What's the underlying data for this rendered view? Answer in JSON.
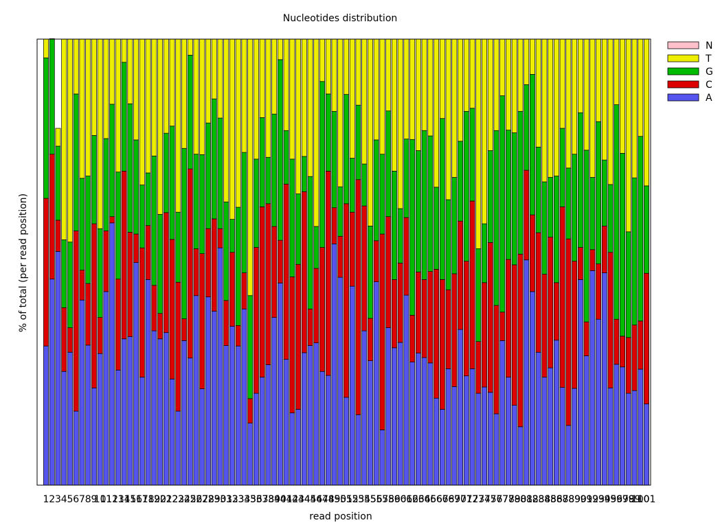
{
  "chart_data": {
    "type": "bar",
    "stacked": true,
    "title": "Nucleotides distribution",
    "xlabel": "read position",
    "ylabel": "% of total (per read position)",
    "ylim": [
      0,
      100
    ],
    "grid": false,
    "legend_position": "top-right, outside plot",
    "categories": [
      1,
      2,
      3,
      4,
      5,
      6,
      7,
      8,
      9,
      10,
      11,
      12,
      13,
      14,
      15,
      16,
      17,
      18,
      19,
      20,
      21,
      22,
      23,
      24,
      25,
      26,
      27,
      28,
      29,
      30,
      31,
      32,
      33,
      34,
      35,
      36,
      37,
      38,
      39,
      40,
      41,
      42,
      43,
      44,
      45,
      46,
      47,
      48,
      49,
      50,
      51,
      52,
      53,
      54,
      55,
      56,
      57,
      58,
      59,
      60,
      61,
      62,
      63,
      64,
      65,
      66,
      67,
      68,
      69,
      70,
      71,
      72,
      73,
      74,
      75,
      76,
      77,
      78,
      79,
      80,
      81,
      82,
      83,
      84,
      85,
      86,
      87,
      88,
      89,
      90,
      91,
      92,
      93,
      94,
      95,
      96,
      97,
      98,
      99,
      100,
      101
    ],
    "series": [
      {
        "name": "A",
        "color": "#5555ee",
        "values": [
          31.2,
          46.2,
          52.4,
          25.5,
          29.8,
          16.6,
          41.5,
          31.4,
          21.8,
          29.5,
          43.4,
          58.8,
          25.8,
          32.8,
          33.3,
          49.9,
          24.2,
          46.1,
          34.6,
          32.8,
          34.2,
          23.8,
          16.6,
          32.4,
          28.5,
          42.5,
          21.6,
          42.2,
          39.0,
          53.2,
          31.3,
          35.6,
          31.2,
          39.5,
          13.9,
          20.6,
          24.2,
          27.0,
          37.6,
          45.3,
          28.2,
          16.2,
          17.0,
          29.7,
          31.3,
          31.9,
          25.5,
          24.6,
          54.1,
          46.6,
          19.7,
          44.6,
          15.8,
          34.6,
          27.9,
          45.6,
          12.4,
          35.3,
          30.8,
          32.0,
          42.6,
          27.6,
          29.6,
          28.6,
          27.4,
          19.5,
          17.0,
          26.1,
          22.1,
          34.9,
          24.5,
          26.1,
          20.6,
          22.0,
          20.8,
          16.0,
          32.4,
          24.2,
          17.9,
          13.1,
          50.5,
          43.4,
          29.8,
          24.2,
          26.3,
          32.5,
          21.9,
          13.4,
          21.7,
          46.1,
          29.0,
          48.1,
          37.2,
          47.6,
          21.8,
          27.1,
          26.5,
          20.6,
          21.2,
          26.0,
          18.2
        ]
      },
      {
        "name": "C",
        "color": "#dd0000",
        "values": [
          33.1,
          28.0,
          7.0,
          14.3,
          5.5,
          40.4,
          6.7,
          13.8,
          36.8,
          8.1,
          13.6,
          1.4,
          20.4,
          37.6,
          23.4,
          6.4,
          29.0,
          12.1,
          10.2,
          5.7,
          26.9,
          31.3,
          28.9,
          4.9,
          42.4,
          10.5,
          30.3,
          15.3,
          20.7,
          4.3,
          10.1,
          16.6,
          4.6,
          8.1,
          5.5,
          32.7,
          38.2,
          36.1,
          20.4,
          9.6,
          39.3,
          30.5,
          32.5,
          36.1,
          8.2,
          16.7,
          27.8,
          45.8,
          8.1,
          9.2,
          43.4,
          16.6,
          52.7,
          28.0,
          9.5,
          9.2,
          43.9,
          24.9,
          15.3,
          17.8,
          17.4,
          10.5,
          18.2,
          17.5,
          20.5,
          28.9,
          29.1,
          17.7,
          25.3,
          24.3,
          25.7,
          37.6,
          11.6,
          23.4,
          33.6,
          24.3,
          6.4,
          26.4,
          31.5,
          38.7,
          20.1,
          17.2,
          26.8,
          23.1,
          29.3,
          12.9,
          40.5,
          41.8,
          28.5,
          7.2,
          7.6,
          4.7,
          12.4,
          10.5,
          30.4,
          10.1,
          6.9,
          12.5,
          14.7,
          10.8,
          29.3
        ]
      },
      {
        "name": "G",
        "color": "#00bb00",
        "values": [
          31.5,
          25.9,
          16.6,
          15.2,
          19.2,
          30.7,
          20.6,
          24.1,
          19.8,
          19.9,
          20.7,
          25.2,
          24.0,
          24.4,
          28.8,
          21.1,
          14.1,
          11.8,
          29.0,
          22.2,
          17.8,
          25.4,
          15.7,
          38.2,
          25.5,
          21.2,
          22.2,
          23.7,
          26.9,
          24.8,
          22.1,
          7.4,
          26.5,
          27.0,
          23.1,
          19.8,
          20.0,
          10.4,
          25.2,
          40.5,
          12.0,
          26.4,
          15.8,
          7.9,
          29.7,
          9.4,
          37.2,
          17.3,
          21.6,
          11.1,
          24.5,
          12.1,
          16.7,
          9.4,
          20.7,
          22.6,
          17.9,
          23.7,
          24.3,
          12.2,
          17.6,
          39.4,
          27.2,
          33.4,
          30.4,
          18.4,
          36.1,
          20.2,
          21.6,
          17.9,
          33.6,
          20.8,
          20.8,
          13.2,
          20.6,
          39.2,
          48.5,
          29.0,
          29.6,
          32.0,
          19.2,
          31.5,
          19.2,
          20.7,
          13.4,
          23.9,
          17.6,
          15.9,
          24.0,
          30.2,
          38.5,
          16.2,
          31.9,
          14.8,
          15.2,
          48.1,
          41.0,
          23.7,
          33.0,
          41.4,
          19.6
        ]
      },
      {
        "name": "T",
        "color": "#eeee00",
        "values": [
          4.2,
          0,
          4.0,
          45.0,
          45.5,
          12.3,
          31.2,
          30.7,
          21.6,
          42.5,
          22.3,
          14.6,
          29.8,
          5.2,
          14.5,
          22.6,
          32.7,
          30.0,
          26.2,
          39.3,
          21.1,
          19.5,
          38.8,
          24.5,
          3.6,
          25.8,
          25.9,
          18.8,
          13.4,
          17.7,
          36.5,
          40.4,
          37.7,
          25.4,
          57.5,
          26.9,
          17.6,
          26.5,
          16.8,
          4.6,
          20.5,
          26.9,
          34.7,
          26.3,
          30.8,
          42.0,
          9.5,
          12.3,
          16.2,
          33.1,
          12.4,
          26.7,
          14.8,
          28.0,
          41.9,
          22.6,
          25.8,
          16.1,
          29.6,
          38.0,
          22.4,
          22.5,
          25.0,
          20.5,
          21.7,
          33.2,
          17.8,
          36.0,
          31.0,
          22.9,
          16.2,
          15.5,
          47.0,
          41.4,
          25.0,
          20.5,
          12.7,
          20.4,
          21.0,
          16.2,
          10.2,
          7.9,
          24.2,
          32.0,
          31.0,
          30.7,
          20.0,
          28.9,
          25.8,
          16.5,
          24.9,
          31.0,
          18.5,
          27.1,
          32.6,
          14.7,
          25.6,
          43.2,
          31.1,
          21.8,
          32.9
        ]
      },
      {
        "name": "N",
        "color": "#ffc0cb",
        "values": [
          0,
          0,
          0,
          0,
          0,
          0,
          0,
          0,
          0,
          0,
          0,
          0,
          0,
          0,
          0,
          0,
          0,
          0,
          0,
          0,
          0,
          0,
          0,
          0,
          0,
          0,
          0,
          0,
          0,
          0,
          0,
          0,
          0,
          0,
          0,
          0,
          0,
          0,
          0,
          0,
          0,
          0,
          0,
          0,
          0,
          0,
          0,
          0,
          0,
          0,
          0,
          0,
          0,
          0,
          0,
          0,
          0,
          0,
          0,
          0,
          0,
          0,
          0,
          0,
          0,
          0,
          0,
          0,
          0,
          0,
          0,
          0,
          0,
          0,
          0,
          0,
          0,
          0,
          0,
          0,
          0,
          0,
          0,
          0,
          0,
          0,
          0,
          0,
          0,
          0,
          0,
          0,
          0,
          0,
          0,
          0,
          0,
          0,
          0,
          0,
          0
        ]
      }
    ],
    "legend": [
      "N",
      "T",
      "G",
      "C",
      "A"
    ]
  }
}
